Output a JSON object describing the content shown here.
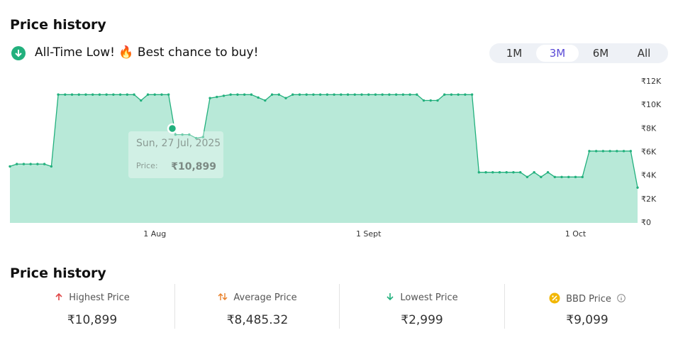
{
  "header": {
    "title": "Price history",
    "status": "All-Time Low! 🔥 Best chance to buy!"
  },
  "ranges": {
    "options": [
      "1M",
      "3M",
      "6M",
      "All"
    ],
    "selected_index": 1
  },
  "chart_data": {
    "type": "area",
    "color": "#22b07d",
    "fill": "#b8e9d8",
    "x": [
      "11 Jul",
      "12 Jul",
      "13 Jul",
      "14 Jul",
      "15 Jul",
      "16 Jul",
      "17 Jul",
      "18 Jul",
      "19 Jul",
      "20 Jul",
      "21 Jul",
      "22 Jul",
      "23 Jul",
      "24 Jul",
      "25 Jul",
      "26 Jul",
      "27 Jul",
      "28 Jul",
      "29 Jul",
      "30 Jul",
      "31 Jul",
      "1 Aug",
      "2 Aug",
      "3 Aug",
      "4 Aug",
      "5 Aug",
      "6 Aug",
      "7 Aug",
      "8 Aug",
      "9 Aug",
      "10 Aug",
      "11 Aug",
      "12 Aug",
      "13 Aug",
      "14 Aug",
      "15 Aug",
      "16 Aug",
      "17 Aug",
      "18 Aug",
      "19 Aug",
      "20 Aug",
      "21 Aug",
      "22 Aug",
      "23 Aug",
      "24 Aug",
      "25 Aug",
      "26 Aug",
      "27 Aug",
      "28 Aug",
      "29 Aug",
      "30 Aug",
      "31 Aug",
      "1 Sept",
      "2 Sept",
      "3 Sept",
      "4 Sept",
      "5 Sept",
      "6 Sept",
      "7 Sept",
      "8 Sept",
      "9 Sept",
      "10 Sept",
      "11 Sept",
      "12 Sept",
      "13 Sept",
      "14 Sept",
      "15 Sept",
      "16 Sept",
      "17 Sept",
      "18 Sept",
      "19 Sept",
      "20 Sept",
      "21 Sept",
      "22 Sept",
      "23 Sept",
      "24 Sept",
      "25 Sept",
      "26 Sept",
      "27 Sept",
      "28 Sept",
      "29 Sept",
      "30 Sept",
      "1 Oct",
      "2 Oct",
      "3 Oct",
      "4 Oct",
      "5 Oct",
      "6 Oct",
      "7 Oct",
      "8 Oct",
      "9 Oct",
      "10 Oct"
    ],
    "values": [
      4800,
      5000,
      5000,
      5000,
      5000,
      5000,
      4800,
      10899,
      10899,
      10899,
      10899,
      10899,
      10899,
      10899,
      10899,
      10899,
      10899,
      10899,
      10899,
      10400,
      10899,
      10899,
      10899,
      10899,
      7500,
      7500,
      7500,
      7200,
      7300,
      10600,
      10700,
      10800,
      10899,
      10899,
      10899,
      10899,
      10650,
      10400,
      10899,
      10899,
      10600,
      10899,
      10899,
      10899,
      10899,
      10899,
      10899,
      10899,
      10899,
      10899,
      10899,
      10899,
      10899,
      10899,
      10899,
      10899,
      10899,
      10899,
      10899,
      10899,
      10400,
      10400,
      10400,
      10899,
      10899,
      10899,
      10899,
      10899,
      4300,
      4300,
      4300,
      4300,
      4300,
      4300,
      4300,
      3900,
      4300,
      3900,
      4300,
      3900,
      3900,
      3900,
      3900,
      3900,
      6100,
      6100,
      6100,
      6100,
      6100,
      6100,
      6100,
      2999
    ],
    "ylim": [
      0,
      12000
    ],
    "yticks": [
      {
        "value": 0,
        "label": "₹0"
      },
      {
        "value": 2000,
        "label": "₹2K"
      },
      {
        "value": 4000,
        "label": "₹4K"
      },
      {
        "value": 6000,
        "label": "₹6K"
      },
      {
        "value": 8000,
        "label": "₹8K"
      },
      {
        "value": 10000,
        "label": "₹10K"
      },
      {
        "value": 12000,
        "label": "₹12K"
      }
    ],
    "xticks": [
      "1 Aug",
      "1 Sept",
      "1 Oct"
    ],
    "tooltip": {
      "date": "Sun, 27 Jul, 2025",
      "label": "Price:",
      "value": "₹10,899"
    }
  },
  "stats": {
    "title": "Price history",
    "items": [
      {
        "label": "Highest Price",
        "value": "₹10,899"
      },
      {
        "label": "Average Price",
        "value": "₹8,485.32"
      },
      {
        "label": "Lowest Price",
        "value": "₹2,999"
      },
      {
        "label": "BBD Price",
        "value": "₹9,099"
      }
    ]
  }
}
